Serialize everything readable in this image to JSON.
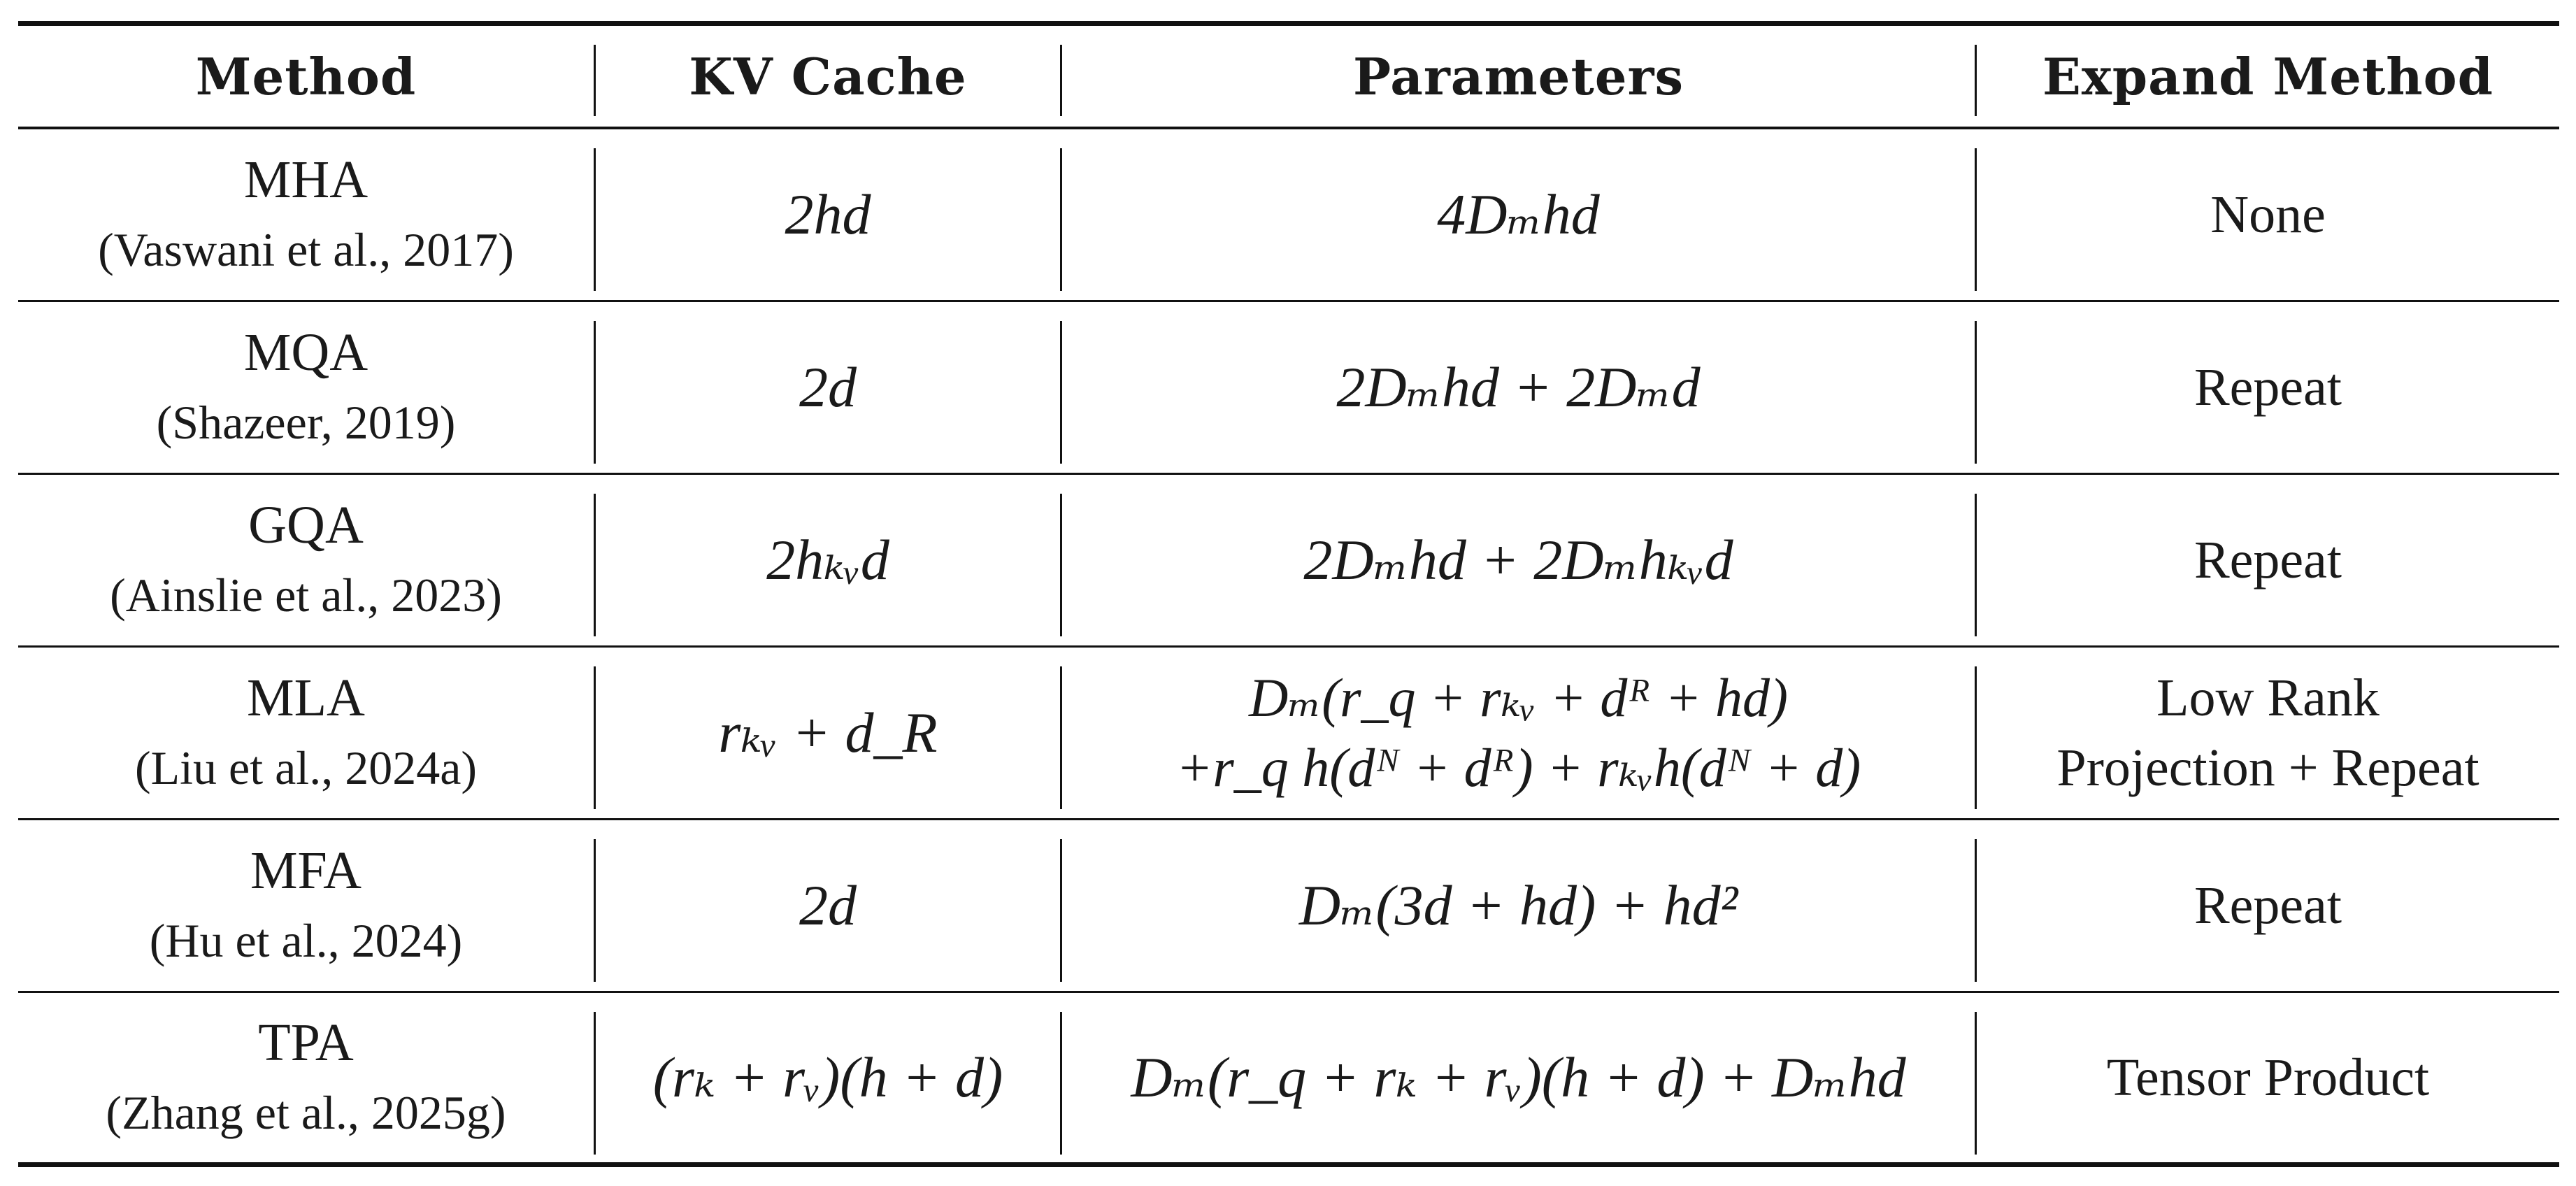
{
  "table": {
    "headers": [
      "Method",
      "KV Cache",
      "Parameters",
      "Expand Method"
    ],
    "rows": [
      {
        "method": "MHA",
        "citation": "(Vaswani et al., 2017)",
        "kv_cache": "2hd",
        "parameters": [
          "4Dₘhd"
        ],
        "expand": [
          "None"
        ]
      },
      {
        "method": "MQA",
        "citation": "(Shazeer, 2019)",
        "kv_cache": "2d",
        "parameters": [
          "2Dₘhd + 2Dₘd"
        ],
        "expand": [
          "Repeat"
        ]
      },
      {
        "method": "GQA",
        "citation": "(Ainslie et al., 2023)",
        "kv_cache": "2hₖᵥd",
        "parameters": [
          "2Dₘhd + 2Dₘhₖᵥd"
        ],
        "expand": [
          "Repeat"
        ]
      },
      {
        "method": "MLA",
        "citation": "(Liu et al., 2024a)",
        "kv_cache": "rₖᵥ + d_R",
        "parameters": [
          "Dₘ(r_q + rₖᵥ + dᴿ + hd)",
          "+r_q h(dᴺ + dᴿ) + rₖᵥh(dᴺ + d)"
        ],
        "expand": [
          "Low Rank",
          "Projection + Repeat"
        ]
      },
      {
        "method": "MFA",
        "citation": "(Hu et al., 2024)",
        "kv_cache": "2d",
        "parameters": [
          "Dₘ(3d + hd) + hd²"
        ],
        "expand": [
          "Repeat"
        ]
      },
      {
        "method": "TPA",
        "citation": "(Zhang et al., 2025g)",
        "kv_cache": "(rₖ + rᵥ)(h + d)",
        "parameters": [
          "Dₘ(r_q + rₖ + rᵥ)(h + d) + Dₘhd"
        ],
        "expand": [
          "Tensor Product"
        ]
      }
    ]
  }
}
